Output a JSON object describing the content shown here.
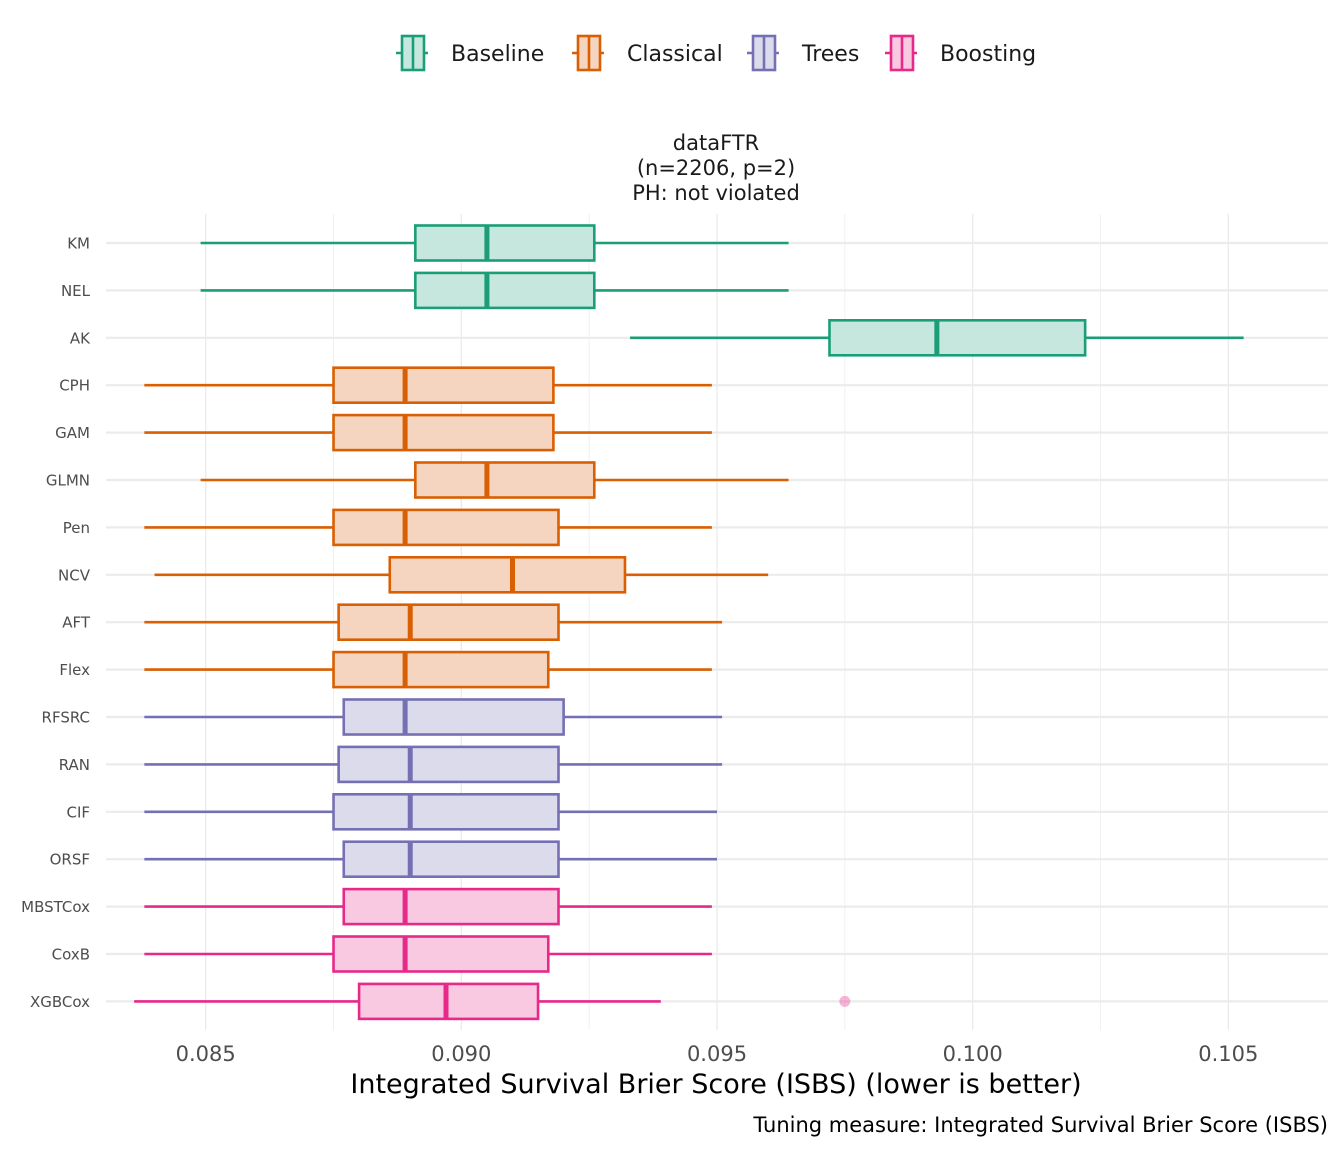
{
  "chart_data": {
    "type": "boxplot",
    "orientation": "horizontal",
    "facet_title": [
      "dataFTR",
      "(n=2206, p=2)",
      "PH: not violated"
    ],
    "xlabel": "Integrated Survival Brier Score (ISBS) (lower is better)",
    "caption": "Tuning measure: Integrated Survival Brier Score (ISBS)",
    "xlim": [
      0.08305,
      0.10695
    ],
    "x_ticks": [
      0.085,
      0.09,
      0.095,
      0.1,
      0.105
    ],
    "x_tick_labels": [
      "0.085",
      "0.090",
      "0.095",
      "0.100",
      "0.105"
    ],
    "grid": true,
    "legend": {
      "position": "top",
      "entries": [
        {
          "name": "Baseline",
          "color": "#1b9e77",
          "fill": "#c6e7dd"
        },
        {
          "name": "Classical",
          "color": "#d95f02",
          "fill": "#f5d5bf"
        },
        {
          "name": "Trees",
          "color": "#7570b3",
          "fill": "#dcdbec"
        },
        {
          "name": "Boosting",
          "color": "#e7298a",
          "fill": "#f8c9e1"
        }
      ]
    },
    "boxes": [
      {
        "label": "KM",
        "group": "Baseline",
        "whisker_low": 0.0849,
        "q1": 0.0891,
        "median": 0.0905,
        "q3": 0.0926,
        "whisker_high": 0.0964,
        "outliers": []
      },
      {
        "label": "NEL",
        "group": "Baseline",
        "whisker_low": 0.0849,
        "q1": 0.0891,
        "median": 0.0905,
        "q3": 0.0926,
        "whisker_high": 0.0964,
        "outliers": []
      },
      {
        "label": "AK",
        "group": "Baseline",
        "whisker_low": 0.0933,
        "q1": 0.0972,
        "median": 0.0993,
        "q3": 0.1022,
        "whisker_high": 0.1053,
        "outliers": []
      },
      {
        "label": "CPH",
        "group": "Classical",
        "whisker_low": 0.0838,
        "q1": 0.0875,
        "median": 0.0889,
        "q3": 0.0918,
        "whisker_high": 0.0949,
        "outliers": []
      },
      {
        "label": "GAM",
        "group": "Classical",
        "whisker_low": 0.0838,
        "q1": 0.0875,
        "median": 0.0889,
        "q3": 0.0918,
        "whisker_high": 0.0949,
        "outliers": []
      },
      {
        "label": "GLMN",
        "group": "Classical",
        "whisker_low": 0.0849,
        "q1": 0.0891,
        "median": 0.0905,
        "q3": 0.0926,
        "whisker_high": 0.0964,
        "outliers": []
      },
      {
        "label": "Pen",
        "group": "Classical",
        "whisker_low": 0.0838,
        "q1": 0.0875,
        "median": 0.0889,
        "q3": 0.0919,
        "whisker_high": 0.0949,
        "outliers": []
      },
      {
        "label": "NCV",
        "group": "Classical",
        "whisker_low": 0.084,
        "q1": 0.0886,
        "median": 0.091,
        "q3": 0.0932,
        "whisker_high": 0.096,
        "outliers": []
      },
      {
        "label": "AFT",
        "group": "Classical",
        "whisker_low": 0.0838,
        "q1": 0.0876,
        "median": 0.089,
        "q3": 0.0919,
        "whisker_high": 0.0951,
        "outliers": []
      },
      {
        "label": "Flex",
        "group": "Classical",
        "whisker_low": 0.0838,
        "q1": 0.0875,
        "median": 0.0889,
        "q3": 0.0917,
        "whisker_high": 0.0949,
        "outliers": []
      },
      {
        "label": "RFSRC",
        "group": "Trees",
        "whisker_low": 0.0838,
        "q1": 0.0877,
        "median": 0.0889,
        "q3": 0.092,
        "whisker_high": 0.0951,
        "outliers": []
      },
      {
        "label": "RAN",
        "group": "Trees",
        "whisker_low": 0.0838,
        "q1": 0.0876,
        "median": 0.089,
        "q3": 0.0919,
        "whisker_high": 0.0951,
        "outliers": []
      },
      {
        "label": "CIF",
        "group": "Trees",
        "whisker_low": 0.0838,
        "q1": 0.0875,
        "median": 0.089,
        "q3": 0.0919,
        "whisker_high": 0.095,
        "outliers": []
      },
      {
        "label": "ORSF",
        "group": "Trees",
        "whisker_low": 0.0838,
        "q1": 0.0877,
        "median": 0.089,
        "q3": 0.0919,
        "whisker_high": 0.095,
        "outliers": []
      },
      {
        "label": "MBSTCox",
        "group": "Boosting",
        "whisker_low": 0.0838,
        "q1": 0.0877,
        "median": 0.0889,
        "q3": 0.0919,
        "whisker_high": 0.0949,
        "outliers": []
      },
      {
        "label": "CoxB",
        "group": "Boosting",
        "whisker_low": 0.0838,
        "q1": 0.0875,
        "median": 0.0889,
        "q3": 0.0917,
        "whisker_high": 0.0949,
        "outliers": []
      },
      {
        "label": "XGBCox",
        "group": "Boosting",
        "whisker_low": 0.0836,
        "q1": 0.088,
        "median": 0.0897,
        "q3": 0.0915,
        "whisker_high": 0.0939,
        "outliers": [
          0.0975
        ]
      }
    ]
  }
}
